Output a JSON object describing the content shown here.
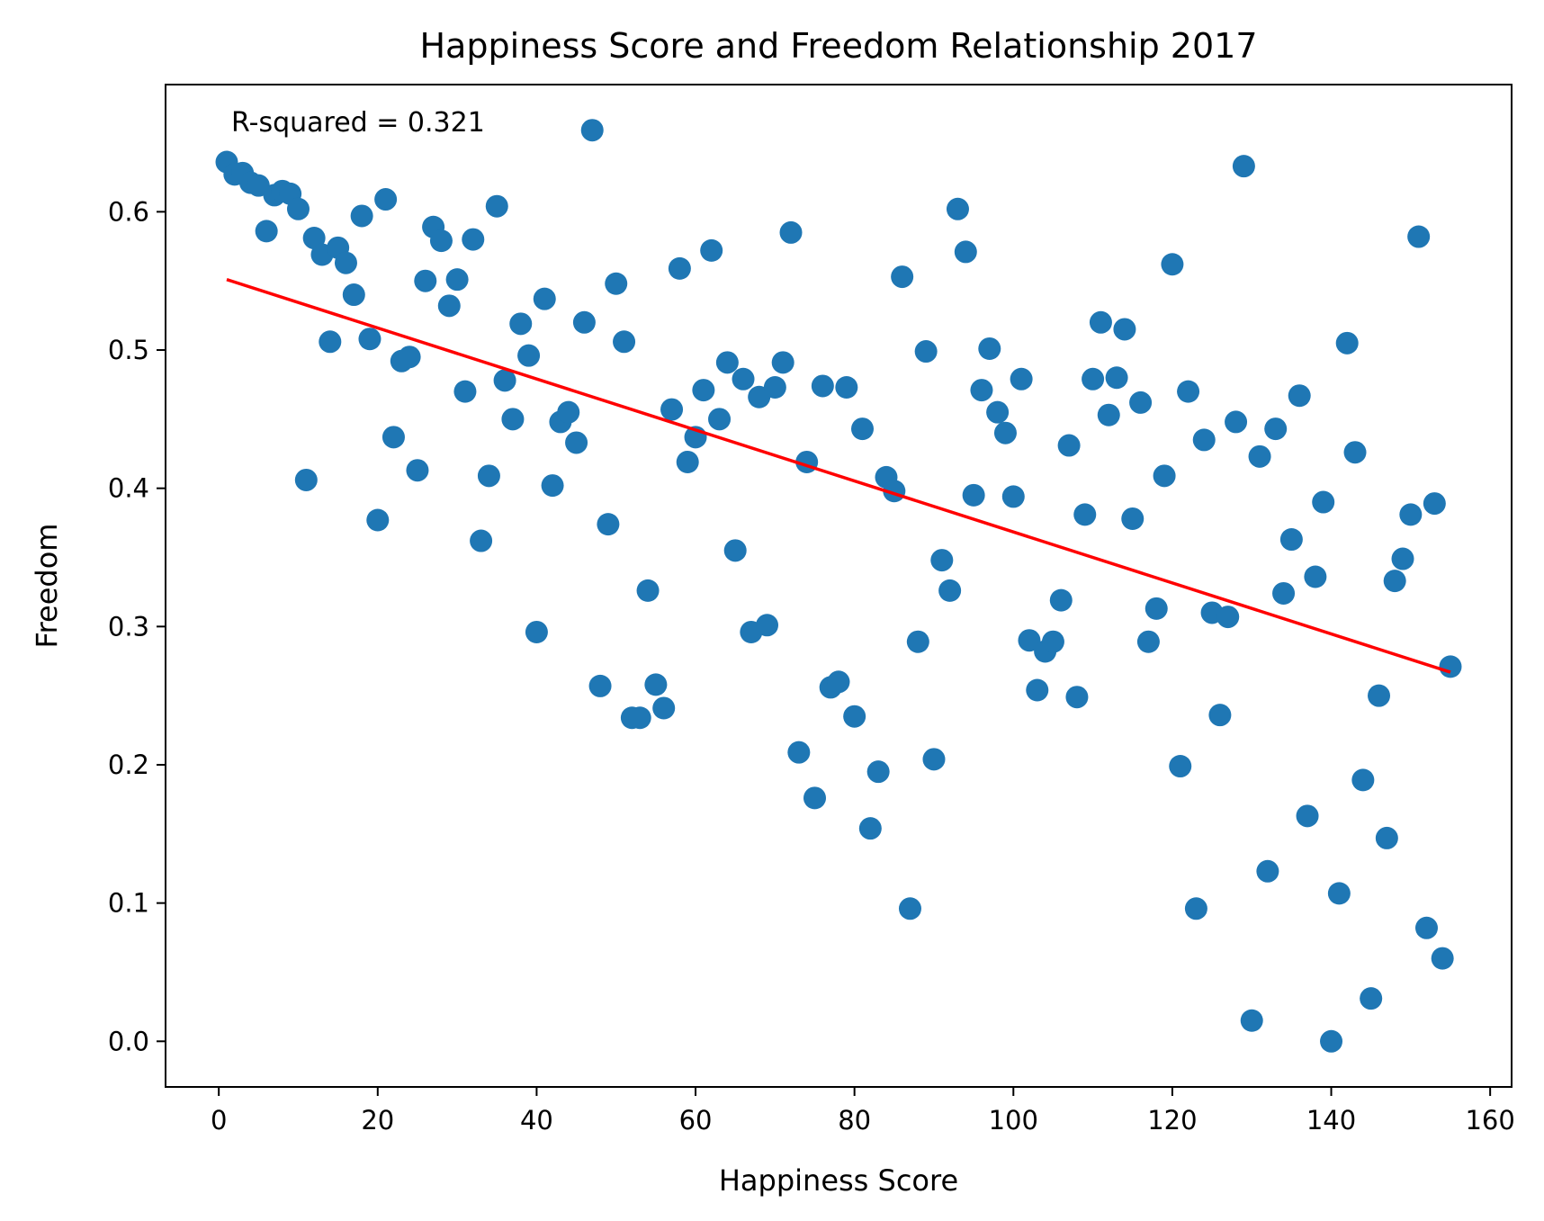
{
  "chart_data": {
    "type": "scatter",
    "title": "Happiness Score and Freedom Relationship 2017",
    "xlabel": "Happiness Score",
    "ylabel": "Freedom",
    "xlim": [
      -6.7,
      162.7
    ],
    "ylim": [
      -0.033,
      0.692
    ],
    "xticks": [
      0,
      20,
      40,
      60,
      80,
      100,
      120,
      140,
      160
    ],
    "xtick_labels": [
      "0",
      "20",
      "40",
      "60",
      "80",
      "100",
      "120",
      "140",
      "160"
    ],
    "yticks": [
      0.0,
      0.1,
      0.2,
      0.3,
      0.4,
      0.5,
      0.6
    ],
    "ytick_labels": [
      "0.0",
      "0.1",
      "0.2",
      "0.3",
      "0.4",
      "0.5",
      "0.6"
    ],
    "grid": false,
    "annotation": "R-squared = 0.321",
    "colors": {
      "points": "#1f77b4",
      "regression_line": "#ff0000"
    },
    "regression_line": {
      "x": [
        1,
        155
      ],
      "y": [
        0.551,
        0.267
      ]
    },
    "points": {
      "x": [
        1,
        2,
        3,
        4,
        5,
        6,
        7,
        8,
        9,
        10,
        11,
        12,
        13,
        14,
        15,
        16,
        17,
        18,
        19,
        20,
        21,
        22,
        23,
        24,
        25,
        26,
        27,
        28,
        29,
        30,
        31,
        32,
        33,
        34,
        35,
        36,
        37,
        38,
        39,
        40,
        41,
        42,
        43,
        44,
        45,
        46,
        47,
        48,
        49,
        50,
        51,
        52,
        53,
        54,
        55,
        56,
        57,
        58,
        59,
        60,
        61,
        62,
        63,
        64,
        65,
        66,
        67,
        68,
        69,
        70,
        71,
        72,
        73,
        74,
        75,
        76,
        77,
        78,
        79,
        80,
        81,
        82,
        83,
        84,
        85,
        86,
        87,
        88,
        89,
        90,
        91,
        92,
        93,
        94,
        95,
        96,
        97,
        98,
        99,
        100,
        101,
        102,
        103,
        104,
        105,
        106,
        107,
        108,
        109,
        110,
        111,
        112,
        113,
        114,
        115,
        116,
        117,
        118,
        119,
        120,
        121,
        122,
        123,
        124,
        125,
        126,
        127,
        128,
        129,
        130,
        131,
        132,
        133,
        134,
        135,
        136,
        137,
        138,
        139,
        140,
        141,
        142,
        143,
        144,
        145,
        146,
        147,
        148,
        149,
        150,
        151,
        152,
        153,
        154,
        155
      ],
      "y": [
        0.636,
        0.627,
        0.628,
        0.621,
        0.619,
        0.586,
        0.612,
        0.615,
        0.613,
        0.602,
        0.406,
        0.581,
        0.569,
        0.506,
        0.574,
        0.563,
        0.54,
        0.597,
        0.508,
        0.377,
        0.609,
        0.437,
        0.492,
        0.495,
        0.413,
        0.55,
        0.589,
        0.579,
        0.532,
        0.551,
        0.47,
        0.58,
        0.362,
        0.409,
        0.604,
        0.478,
        0.45,
        0.519,
        0.496,
        0.296,
        0.537,
        0.402,
        0.448,
        0.455,
        0.433,
        0.52,
        0.659,
        0.257,
        0.374,
        0.548,
        0.506,
        0.234,
        0.234,
        0.326,
        0.258,
        0.241,
        0.457,
        0.559,
        0.419,
        0.437,
        0.471,
        0.572,
        0.45,
        0.491,
        0.355,
        0.479,
        0.296,
        0.466,
        0.301,
        0.473,
        0.491,
        0.585,
        0.209,
        0.419,
        0.176,
        0.474,
        0.256,
        0.26,
        0.473,
        0.235,
        0.443,
        0.154,
        0.195,
        0.408,
        0.398,
        0.553,
        0.096,
        0.289,
        0.499,
        0.204,
        0.348,
        0.326,
        0.602,
        0.571,
        0.395,
        0.471,
        0.501,
        0.455,
        0.44,
        0.394,
        0.479,
        0.29,
        0.254,
        0.282,
        0.289,
        0.319,
        0.431,
        0.249,
        0.381,
        0.479,
        0.52,
        0.453,
        0.48,
        0.515,
        0.378,
        0.462,
        0.289,
        0.313,
        0.409,
        0.562,
        0.199,
        0.47,
        0.096,
        0.435,
        0.31,
        0.236,
        0.307,
        0.448,
        0.633,
        0.015,
        0.423,
        0.123,
        0.443,
        0.324,
        0.363,
        0.467,
        0.163,
        0.336,
        0.39,
        0.0,
        0.107,
        0.505,
        0.426,
        0.189,
        0.031,
        0.25,
        0.147,
        0.333,
        0.349,
        0.381,
        0.582,
        0.082,
        0.389,
        0.06,
        0.271
      ]
    }
  }
}
